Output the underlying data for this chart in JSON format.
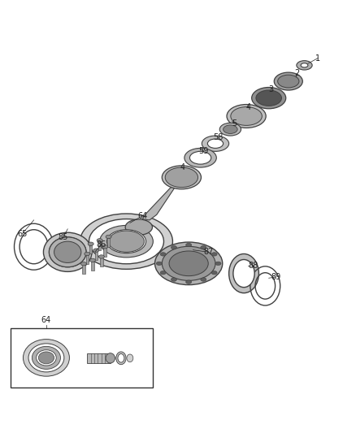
{
  "bg_color": "#ffffff",
  "line_color": "#404040",
  "fill_color": "#d0d0d0",
  "dark_fill": "#808080",
  "label_color": "#222222",
  "title": "",
  "figsize": [
    4.38,
    5.33
  ],
  "dpi": 100
}
